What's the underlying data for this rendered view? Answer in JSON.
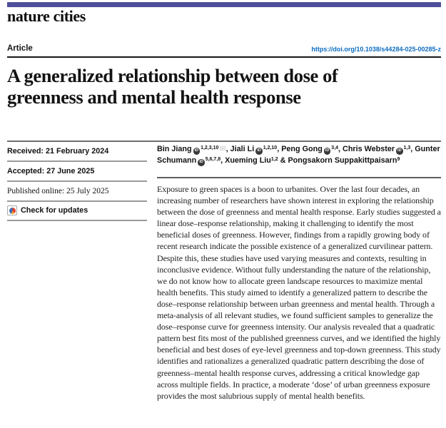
{
  "colors": {
    "brand_bar": "#4e4e9c",
    "link_blue": "#0d6cc1",
    "rule_black": "#161616",
    "rule_gray": "#999999"
  },
  "masthead": {
    "journal_name": "nature cities"
  },
  "article_bar": {
    "article_type": "Article",
    "doi_url": "https://doi.org/10.1038/s44284-025-00285-z"
  },
  "title": {
    "line1": "A generalized relationship between dose of",
    "line2": "greenness and mental health response"
  },
  "sidebar": {
    "received": "Received: 21 February 2024",
    "accepted": "Accepted: 27 June 2025",
    "published_online": "Published online: 25 July 2025",
    "check_for_updates": "Check for updates"
  },
  "icons": {
    "orcid": "iD",
    "email": "✉",
    "crossmark": "crossmark-badge"
  },
  "authors": [
    {
      "name": "Bin Jiang",
      "orcid": true,
      "sup": "1,2,3,10",
      "envelope": true,
      "sep": ", "
    },
    {
      "name": "Jiali Li",
      "orcid": true,
      "sup": "1,2,10",
      "envelope": false,
      "sep": ", "
    },
    {
      "name": "Peng Gong",
      "orcid": true,
      "sup": "3,4",
      "envelope": false,
      "sep": ", "
    },
    {
      "name": "Chris Webster",
      "orcid": true,
      "sup": "1,3",
      "envelope": false,
      "sep": ", "
    },
    {
      "name": "Gunter Schumann",
      "orcid": true,
      "sup": "5,6,7,8",
      "envelope": false,
      "sep": ", "
    },
    {
      "name": "Xueming Liu",
      "orcid": false,
      "sup": "1,2",
      "envelope": false,
      "sep": " & "
    },
    {
      "name": "Pongsakorn Suppakittpaisarn",
      "orcid": false,
      "sup": "9",
      "envelope": false,
      "sep": ""
    }
  ],
  "abstract": "Exposure to green spaces is a boon to urbanites. Over the last four decades, an increasing number of researchers have shown interest in exploring the relationship between the dose of greenness and mental health response. Early studies suggested a linear dose–response relationship, making it challenging to identify the most beneficial doses of greenness. However, findings from a rapidly growing body of recent research indicate the possible existence of a generalized curvilinear pattern. Despite this, these studies have used varying measures and contexts, resulting in inconclusive evidence. Without fully understanding the nature of the relationship, we do not know how to allocate green landscape resources to maximize mental health benefits. This study aimed to identify a generalized pattern to describe the dose–response relationship between urban greenness and mental health. Through a meta-analysis of all relevant studies, we found sufficient samples to generalize the dose–response curve for greenness intensity. Our analysis revealed that a quadratic pattern best fits most of the published greenness curves, and we identified the highly beneficial and best doses of eye-level greenness and top-down greenness. This study identifies and rationalizes a generalized quadratic pattern describing the dose of greenness–mental health response curves, addressing a critical knowledge gap across multiple fields. In practice, a moderate ‘dose’ of urban greenness exposure provides the most salubrious supply of mental health benefits."
}
